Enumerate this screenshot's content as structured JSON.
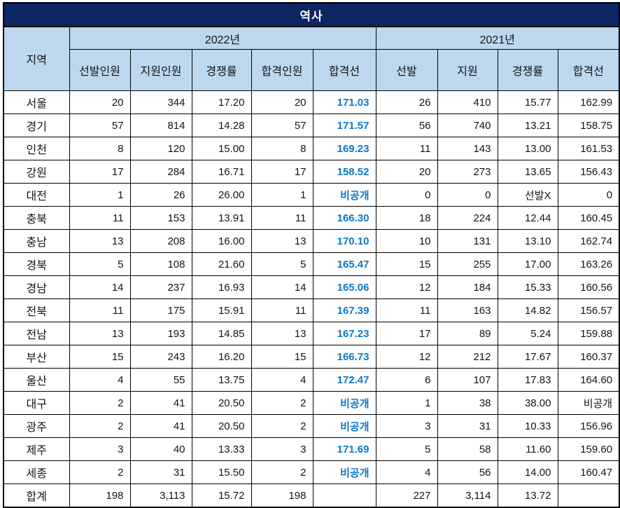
{
  "colors": {
    "title_bg": "#0e2563",
    "title_text": "#ffffff",
    "header_bg": "#bdd7ee",
    "cutline_blue": "#0c78c8",
    "border": "#000000"
  },
  "chart_data": {
    "type": "table",
    "title": "역사",
    "region_header": "지역",
    "column_groups": [
      {
        "label": "2022년",
        "columns": [
          "선발인원",
          "지원인원",
          "경쟁률",
          "합격인원",
          "합격선"
        ]
      },
      {
        "label": "2021년",
        "columns": [
          "선발",
          "지원",
          "경쟁률",
          "합격선"
        ]
      }
    ],
    "rows": [
      {
        "region": "서울",
        "values": [
          "20",
          "344",
          "17.20",
          "20",
          "171.03",
          "26",
          "410",
          "15.77",
          "162.99"
        ]
      },
      {
        "region": "경기",
        "values": [
          "57",
          "814",
          "14.28",
          "57",
          "171.57",
          "56",
          "740",
          "13.21",
          "158.75"
        ]
      },
      {
        "region": "인천",
        "values": [
          "8",
          "120",
          "15.00",
          "8",
          "169.23",
          "11",
          "143",
          "13.00",
          "161.53"
        ]
      },
      {
        "region": "강원",
        "values": [
          "17",
          "284",
          "16.71",
          "17",
          "158.52",
          "20",
          "273",
          "13.65",
          "156.43"
        ]
      },
      {
        "region": "대전",
        "values": [
          "1",
          "26",
          "26.00",
          "1",
          "비공개",
          "0",
          "0",
          "선발X",
          "0"
        ]
      },
      {
        "region": "충북",
        "values": [
          "11",
          "153",
          "13.91",
          "11",
          "166.30",
          "18",
          "224",
          "12.44",
          "160.45"
        ]
      },
      {
        "region": "충남",
        "values": [
          "13",
          "208",
          "16.00",
          "13",
          "170.10",
          "10",
          "131",
          "13.10",
          "162.74"
        ]
      },
      {
        "region": "경북",
        "values": [
          "5",
          "108",
          "21.60",
          "5",
          "165.47",
          "15",
          "255",
          "17.00",
          "163.26"
        ]
      },
      {
        "region": "경남",
        "values": [
          "14",
          "237",
          "16.93",
          "14",
          "165.06",
          "12",
          "184",
          "15.33",
          "160.56"
        ]
      },
      {
        "region": "전북",
        "values": [
          "11",
          "175",
          "15.91",
          "11",
          "167.39",
          "11",
          "163",
          "14.82",
          "156.57"
        ]
      },
      {
        "region": "전남",
        "values": [
          "13",
          "193",
          "14.85",
          "13",
          "167.23",
          "17",
          "89",
          "5.24",
          "159.88"
        ]
      },
      {
        "region": "부산",
        "values": [
          "15",
          "243",
          "16.20",
          "15",
          "166.73",
          "12",
          "212",
          "17.67",
          "160.37"
        ]
      },
      {
        "region": "울산",
        "values": [
          "4",
          "55",
          "13.75",
          "4",
          "172.47",
          "6",
          "107",
          "17.83",
          "164.60"
        ]
      },
      {
        "region": "대구",
        "values": [
          "2",
          "41",
          "20.50",
          "2",
          "비공개",
          "1",
          "38",
          "38.00",
          "비공개"
        ]
      },
      {
        "region": "광주",
        "values": [
          "2",
          "41",
          "20.50",
          "2",
          "비공개",
          "3",
          "31",
          "10.33",
          "156.96"
        ]
      },
      {
        "region": "제주",
        "values": [
          "3",
          "40",
          "13.33",
          "3",
          "171.69",
          "5",
          "58",
          "11.60",
          "159.60"
        ]
      },
      {
        "region": "세종",
        "values": [
          "2",
          "31",
          "15.50",
          "2",
          "비공개",
          "4",
          "56",
          "14.00",
          "160.47"
        ]
      },
      {
        "region": "합계",
        "values": [
          "198",
          "3,113",
          "15.72",
          "198",
          "",
          "227",
          "3,114",
          "13.72",
          ""
        ]
      }
    ]
  }
}
